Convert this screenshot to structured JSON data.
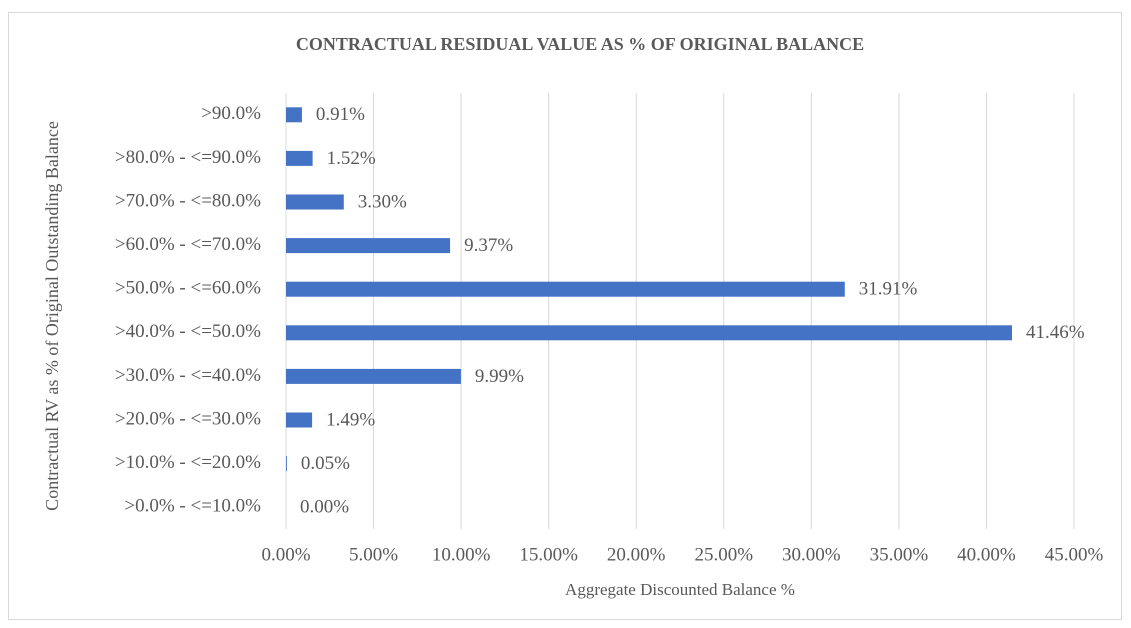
{
  "chart_data": {
    "type": "bar",
    "orientation": "horizontal",
    "title": "CONTRACTUAL RESIDUAL VALUE AS % OF ORIGINAL BALANCE",
    "x_label": "Aggregate Discounted Balance %",
    "y_label": "Contractual RV as % of Original Outstanding Balance",
    "categories": [
      ">90.0%",
      ">80.0% - <=90.0%",
      ">70.0% - <=80.0%",
      ">60.0% - <=70.0%",
      ">50.0% - <=60.0%",
      ">40.0% - <=50.0%",
      ">30.0% - <=40.0%",
      ">20.0% - <=30.0%",
      ">10.0% - <=20.0%",
      ">0.0% - <=10.0%"
    ],
    "values": [
      0.91,
      1.52,
      3.3,
      9.37,
      31.91,
      41.46,
      9.99,
      1.49,
      0.05,
      0.0
    ],
    "value_labels": [
      "0.91%",
      "1.52%",
      "3.30%",
      "9.37%",
      "31.91%",
      "41.46%",
      "9.99%",
      "1.49%",
      "0.05%",
      "0.00%"
    ],
    "color": "#4472c4",
    "xlim": [
      0,
      45
    ],
    "xticks": [
      {
        "value": 0,
        "label": "0.00%"
      },
      {
        "value": 5,
        "label": "5.00%"
      },
      {
        "value": 10,
        "label": "10.00%"
      },
      {
        "value": 15,
        "label": "15.00%"
      },
      {
        "value": 20,
        "label": "20.00%"
      },
      {
        "value": 25,
        "label": "25.00%"
      },
      {
        "value": 30,
        "label": "30.00%"
      },
      {
        "value": 35,
        "label": "35.00%"
      },
      {
        "value": 40,
        "label": "40.00%"
      },
      {
        "value": 45,
        "label": "45.00%"
      }
    ],
    "grid": true
  }
}
